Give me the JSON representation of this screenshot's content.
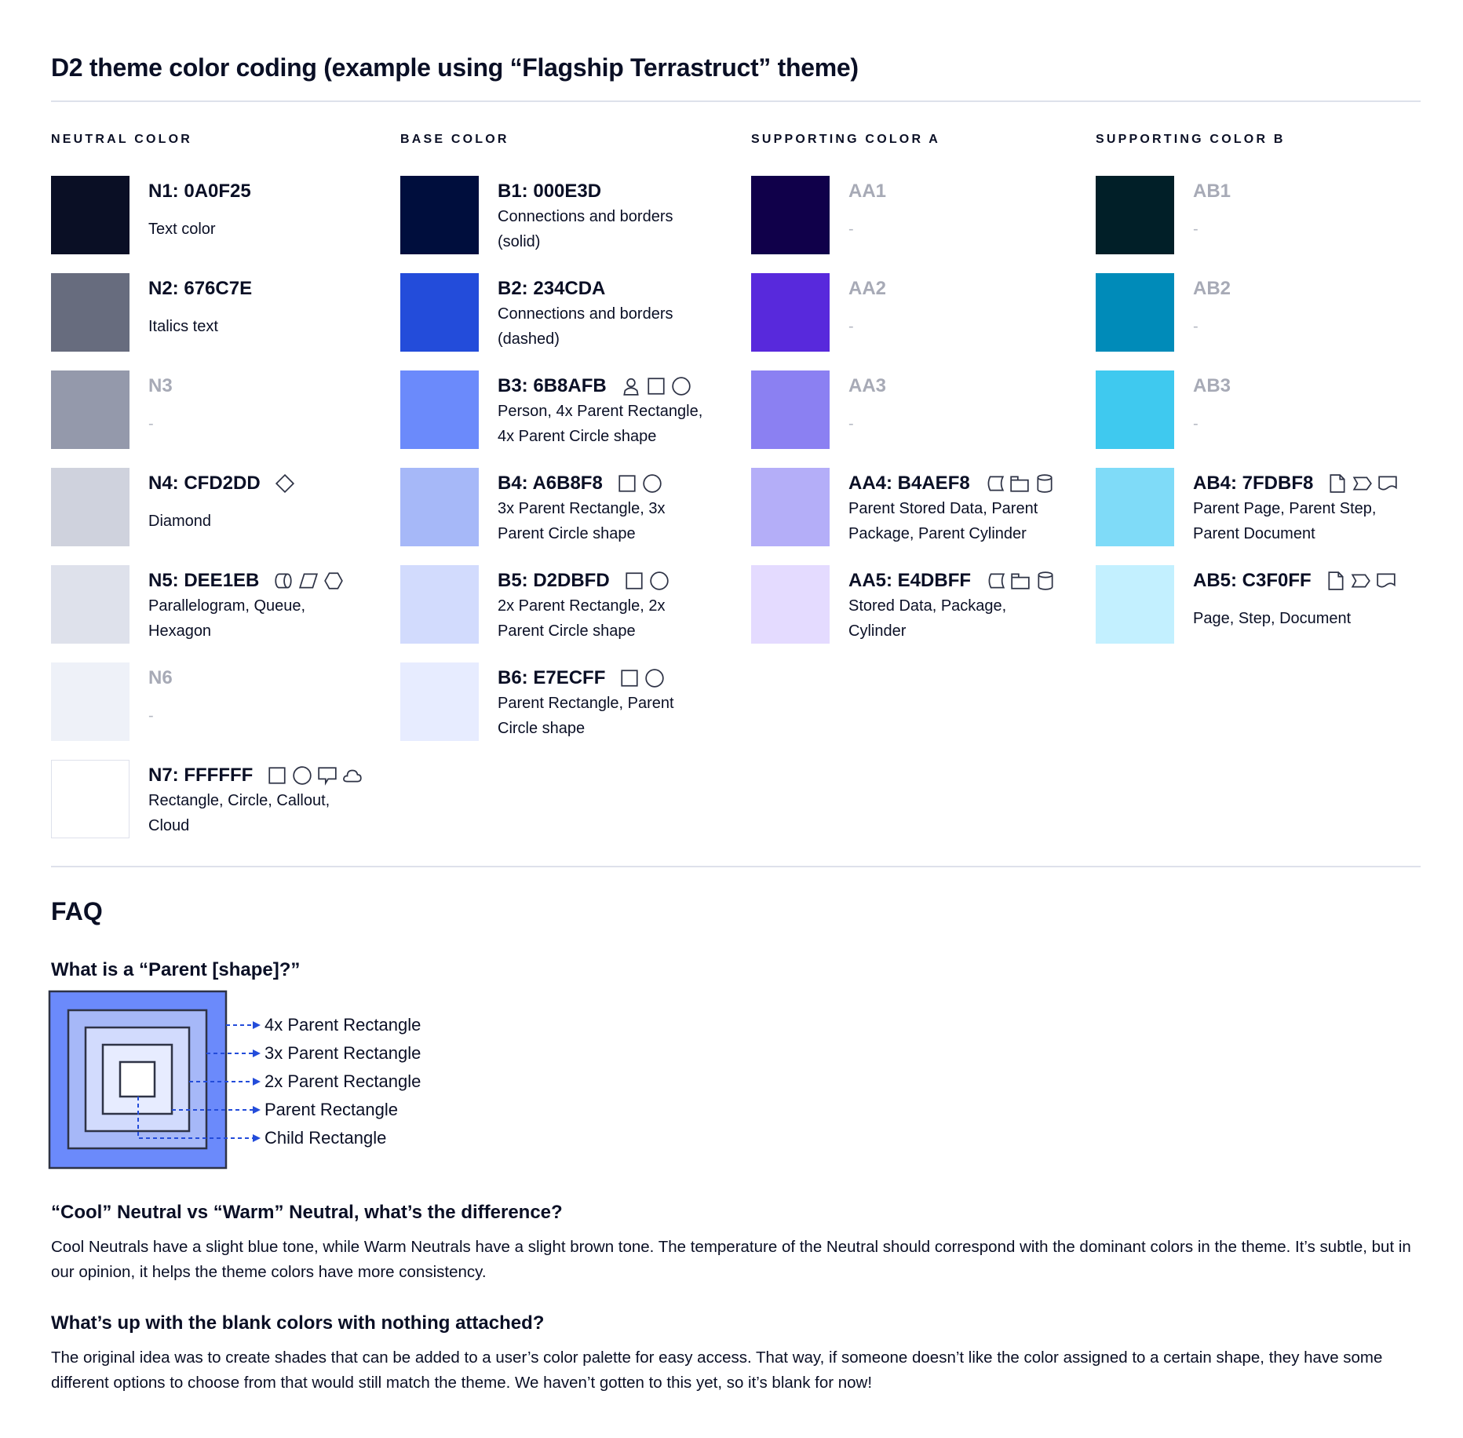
{
  "title": "D2 theme color coding (example using “Flagship Terrastruct” theme)",
  "columns": [
    {
      "header": "NEUTRAL COLOR",
      "items": [
        {
          "label": "N1: 0A0F25",
          "color": "#0A0F25",
          "desc": [
            "Text color"
          ],
          "icons": []
        },
        {
          "label": "N2: 676C7E",
          "color": "#676C7E",
          "desc": [
            "Italics text"
          ],
          "icons": []
        },
        {
          "label": "N3",
          "color": "#9499AB",
          "blank": true,
          "desc": [
            "-"
          ],
          "icons": []
        },
        {
          "label": "N4: CFD2DD",
          "color": "#CFD2DD",
          "desc": [
            "Diamond"
          ],
          "icons": [
            "diamond"
          ]
        },
        {
          "label": "N5: DEE1EB",
          "color": "#DEE1EB",
          "desc": [
            "Parallelogram, Queue,",
            "Hexagon"
          ],
          "icons": [
            "queue",
            "parallelogram",
            "hexagon"
          ]
        },
        {
          "label": "N6",
          "color": "#EEF1F8",
          "blank": true,
          "desc": [
            "-"
          ],
          "icons": []
        },
        {
          "label": "N7: FFFFFF",
          "color": "#FFFFFF",
          "desc": [
            "Rectangle, Circle, Callout,",
            "Cloud"
          ],
          "icons": [
            "rectangle",
            "circle",
            "callout",
            "cloud"
          ]
        }
      ]
    },
    {
      "header": "BASE COLOR",
      "items": [
        {
          "label": "B1: 000E3D",
          "color": "#000E3D",
          "desc": [
            "Connections and borders",
            "(solid)"
          ],
          "icons": []
        },
        {
          "label": "B2: 234CDA",
          "color": "#234CDA",
          "desc": [
            "Connections and borders",
            "(dashed)"
          ],
          "icons": []
        },
        {
          "label": "B3: 6B8AFB",
          "color": "#6B8AFB",
          "desc": [
            "Person, 4x Parent Rectangle,",
            "4x Parent Circle shape"
          ],
          "icons": [
            "person",
            "rectangle",
            "circle"
          ]
        },
        {
          "label": "B4: A6B8F8",
          "color": "#A6B8F8",
          "desc": [
            "3x Parent Rectangle, 3x",
            "Parent Circle shape"
          ],
          "icons": [
            "rectangle",
            "circle"
          ]
        },
        {
          "label": "B5: D2DBFD",
          "color": "#D2DBFD",
          "desc": [
            "2x Parent Rectangle, 2x",
            "Parent Circle shape"
          ],
          "icons": [
            "rectangle",
            "circle"
          ]
        },
        {
          "label": "B6: E7ECFF",
          "color": "#E7ECFF",
          "desc": [
            "Parent Rectangle, Parent",
            "Circle shape"
          ],
          "icons": [
            "rectangle",
            "circle"
          ]
        }
      ]
    },
    {
      "header": "SUPPORTING COLOR A",
      "items": [
        {
          "label": "AA1",
          "color": "#10004A",
          "blank": true,
          "desc": [
            "-"
          ],
          "icons": []
        },
        {
          "label": "AA2",
          "color": "#5829DC",
          "blank": true,
          "desc": [
            "-"
          ],
          "icons": []
        },
        {
          "label": "AA3",
          "color": "#8B80F2",
          "blank": true,
          "desc": [
            "-"
          ],
          "icons": []
        },
        {
          "label": "AA4: B4AEF8",
          "color": "#B4AEF8",
          "desc": [
            "Parent Stored Data, Parent",
            "Package,  Parent Cylinder"
          ],
          "icons": [
            "stored-data",
            "package",
            "cylinder"
          ]
        },
        {
          "label": "AA5: E4DBFF",
          "color": "#E4DBFF",
          "desc": [
            "Stored Data, Package,",
            "Cylinder"
          ],
          "icons": [
            "stored-data",
            "package",
            "cylinder"
          ]
        }
      ]
    },
    {
      "header": "SUPPORTING COLOR B",
      "items": [
        {
          "label": "AB1",
          "color": "#011F28",
          "blank": true,
          "desc": [
            "-"
          ],
          "icons": []
        },
        {
          "label": "AB2",
          "color": "#008BB9",
          "blank": true,
          "desc": [
            "-"
          ],
          "icons": []
        },
        {
          "label": "AB3",
          "color": "#3FC9EF",
          "blank": true,
          "desc": [
            "-"
          ],
          "icons": []
        },
        {
          "label": "AB4: 7FDBF8",
          "color": "#7FDBF8",
          "desc": [
            "Parent Page, Parent Step,",
            "Parent Document"
          ],
          "icons": [
            "page",
            "step",
            "document"
          ]
        },
        {
          "label": "AB5: C3F0FF",
          "color": "#C3F0FF",
          "desc": [
            "Page, Step, Document"
          ],
          "icons": [
            "page",
            "step",
            "document"
          ]
        }
      ]
    }
  ],
  "faq": {
    "heading": "FAQ",
    "q1": "What is a “Parent [shape]?”",
    "diagram_labels": [
      "4x Parent Rectangle",
      "3x Parent Rectangle",
      "2x Parent Rectangle",
      "Parent Rectangle",
      "Child Rectangle"
    ],
    "diagram_colors": [
      "#6B8AFB",
      "#A6B8F8",
      "#D2DBFD",
      "#E7ECFF",
      "#FFFFFF"
    ],
    "arrow_color": "#234CDA",
    "q2": "“Cool” Neutral vs “Warm” Neutral, what’s the difference?",
    "a2": "Cool Neutrals have a slight blue tone, while Warm Neutrals have a slight brown tone. The temperature of the Neutral should correspond with the dominant colors in the theme. It’s subtle, but in our opinion, it helps the theme colors have more consistency.",
    "q3": "What’s up with the blank colors with nothing attached?",
    "a3": "The original idea was to create shades that can be added to a user’s color palette for easy access. That way, if someone doesn’t like the color assigned to a certain shape, they have some different options to choose from that would still match the theme. We haven’t gotten to this yet, so it’s blank for now!"
  }
}
